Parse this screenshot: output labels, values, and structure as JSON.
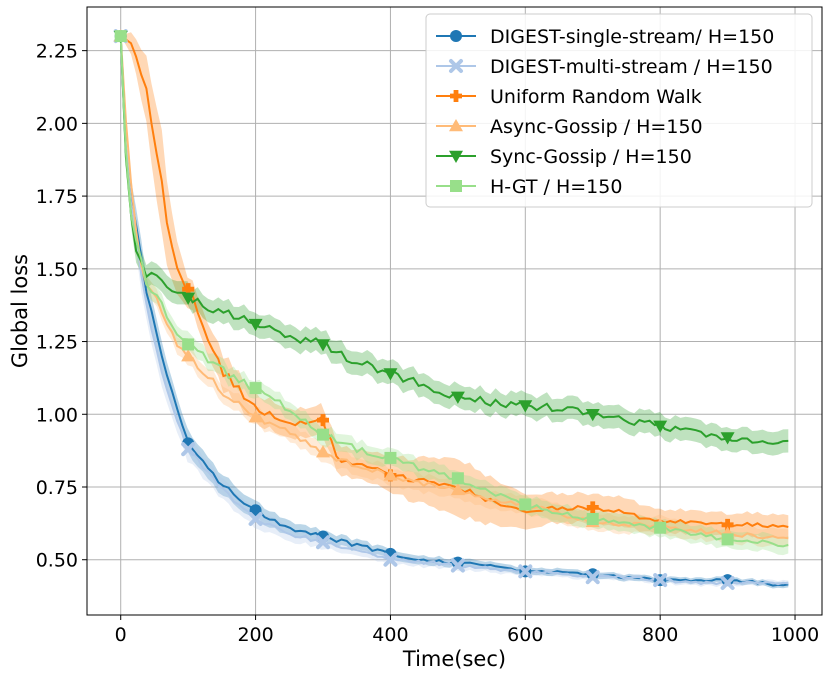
{
  "chart_data": {
    "type": "line",
    "title": "",
    "xlabel": "Time(sec)",
    "ylabel": "Global loss",
    "xlim": [
      -50,
      1040
    ],
    "ylim": [
      0.31,
      2.4
    ],
    "xticks": [
      0,
      200,
      400,
      600,
      800,
      1000
    ],
    "yticks": [
      0.5,
      0.75,
      1.0,
      1.25,
      1.5,
      1.75,
      2.0,
      2.25
    ],
    "xtick_labels": [
      "0",
      "200",
      "400",
      "600",
      "800",
      "1000"
    ],
    "ytick_labels": [
      "0.50",
      "0.75",
      "1.00",
      "1.25",
      "1.50",
      "1.75",
      "2.00",
      "2.25"
    ],
    "grid": true,
    "legend_position": "top-right",
    "series": [
      {
        "name": "DIGEST-single-stream/ H=150",
        "color": "#1f77b4",
        "marker": "circle",
        "x": [
          0,
          10,
          20,
          30,
          40,
          60,
          80,
          100,
          150,
          200,
          250,
          300,
          350,
          400,
          450,
          500,
          550,
          600,
          650,
          700,
          750,
          800,
          850,
          900,
          950,
          990
        ],
        "y": [
          2.3,
          1.8,
          1.7,
          1.55,
          1.4,
          1.2,
          1.05,
          0.9,
          0.76,
          0.67,
          0.61,
          0.58,
          0.55,
          0.52,
          0.5,
          0.49,
          0.48,
          0.46,
          0.46,
          0.45,
          0.44,
          0.43,
          0.43,
          0.43,
          0.42,
          0.41
        ],
        "band": [
          0.0,
          0.06,
          0.06,
          0.06,
          0.05,
          0.05,
          0.04,
          0.04,
          0.035,
          0.03,
          0.025,
          0.02,
          0.018,
          0.016,
          0.015,
          0.014,
          0.013,
          0.012,
          0.012,
          0.011,
          0.011,
          0.01,
          0.01,
          0.01,
          0.01,
          0.01
        ],
        "markers_x": [
          0,
          100,
          200,
          300,
          400,
          500,
          600,
          700,
          800,
          900
        ]
      },
      {
        "name": "DIGEST-multi-stream / H=150",
        "color": "#aec7e8",
        "marker": "x-filled",
        "x": [
          0,
          10,
          20,
          30,
          40,
          60,
          80,
          100,
          150,
          200,
          250,
          300,
          350,
          400,
          450,
          500,
          550,
          600,
          650,
          700,
          750,
          800,
          850,
          900,
          950,
          990
        ],
        "y": [
          2.3,
          1.78,
          1.65,
          1.5,
          1.35,
          1.15,
          1.0,
          0.88,
          0.74,
          0.64,
          0.59,
          0.56,
          0.53,
          0.5,
          0.49,
          0.48,
          0.47,
          0.46,
          0.45,
          0.44,
          0.44,
          0.43,
          0.42,
          0.42,
          0.42,
          0.42
        ],
        "band": [
          0.0,
          0.06,
          0.06,
          0.06,
          0.05,
          0.05,
          0.04,
          0.04,
          0.035,
          0.03,
          0.025,
          0.02,
          0.018,
          0.016,
          0.015,
          0.014,
          0.013,
          0.012,
          0.012,
          0.011,
          0.011,
          0.01,
          0.01,
          0.01,
          0.01,
          0.01
        ],
        "markers_x": [
          0,
          100,
          200,
          300,
          400,
          500,
          600,
          700,
          800,
          900
        ]
      },
      {
        "name": "Uniform Random Walk",
        "color": "#ff7f0e",
        "marker": "plus-filled",
        "x": [
          0,
          20,
          40,
          60,
          80,
          100,
          150,
          200,
          250,
          290,
          300,
          320,
          350,
          400,
          450,
          500,
          550,
          600,
          650,
          700,
          750,
          800,
          850,
          900,
          950,
          990
        ],
        "y": [
          2.3,
          2.25,
          2.1,
          1.8,
          1.5,
          1.43,
          1.15,
          1.02,
          0.97,
          0.97,
          0.98,
          0.85,
          0.83,
          0.79,
          0.77,
          0.75,
          0.7,
          0.66,
          0.68,
          0.68,
          0.66,
          0.63,
          0.63,
          0.62,
          0.62,
          0.62
        ],
        "band": [
          0.0,
          0.05,
          0.12,
          0.18,
          0.1,
          0.05,
          0.06,
          0.05,
          0.05,
          0.05,
          0.05,
          0.05,
          0.05,
          0.06,
          0.08,
          0.1,
          0.08,
          0.06,
          0.05,
          0.05,
          0.05,
          0.04,
          0.04,
          0.04,
          0.04,
          0.04
        ],
        "markers_x": [
          100,
          300,
          400,
          700,
          900
        ]
      },
      {
        "name": "Async-Gossip / H=150",
        "color": "#ffbb78",
        "marker": "triangle-up",
        "x": [
          0,
          10,
          20,
          30,
          40,
          60,
          80,
          100,
          150,
          200,
          250,
          300,
          350,
          400,
          450,
          500,
          550,
          600,
          650,
          700,
          750,
          800,
          850,
          900,
          950,
          990
        ],
        "y": [
          2.3,
          1.9,
          1.7,
          1.52,
          1.45,
          1.35,
          1.25,
          1.2,
          1.08,
          0.99,
          0.94,
          0.87,
          0.82,
          0.79,
          0.76,
          0.74,
          0.71,
          0.69,
          0.66,
          0.63,
          0.62,
          0.62,
          0.6,
          0.59,
          0.58,
          0.58
        ],
        "band": [
          0.0,
          0.03,
          0.03,
          0.03,
          0.03,
          0.03,
          0.03,
          0.03,
          0.03,
          0.03,
          0.03,
          0.03,
          0.03,
          0.03,
          0.03,
          0.03,
          0.03,
          0.03,
          0.03,
          0.03,
          0.03,
          0.03,
          0.03,
          0.03,
          0.03,
          0.03
        ],
        "markers_x": [
          0,
          100,
          200,
          300,
          400,
          500,
          600,
          700,
          800,
          900
        ]
      },
      {
        "name": "Sync-Gossip / H=150",
        "color": "#2ca02c",
        "marker": "triangle-down",
        "x": [
          0,
          10,
          20,
          30,
          40,
          60,
          80,
          100,
          150,
          200,
          250,
          300,
          350,
          400,
          450,
          500,
          550,
          600,
          650,
          700,
          750,
          800,
          850,
          900,
          950,
          990
        ],
        "y": [
          2.3,
          1.75,
          1.6,
          1.52,
          1.48,
          1.45,
          1.42,
          1.4,
          1.35,
          1.31,
          1.27,
          1.24,
          1.18,
          1.14,
          1.1,
          1.06,
          1.04,
          1.03,
          1.02,
          1.0,
          0.98,
          0.96,
          0.94,
          0.92,
          0.9,
          0.9
        ],
        "band": [
          0.0,
          0.04,
          0.04,
          0.04,
          0.04,
          0.04,
          0.04,
          0.04,
          0.04,
          0.04,
          0.04,
          0.04,
          0.04,
          0.04,
          0.04,
          0.04,
          0.04,
          0.04,
          0.04,
          0.04,
          0.04,
          0.04,
          0.04,
          0.04,
          0.04,
          0.04
        ],
        "markers_x": [
          0,
          100,
          200,
          300,
          400,
          500,
          600,
          700,
          800,
          900
        ]
      },
      {
        "name": "H-GT / H=150",
        "color": "#98df8a",
        "marker": "square",
        "x": [
          0,
          10,
          20,
          30,
          40,
          60,
          80,
          100,
          150,
          200,
          250,
          300,
          350,
          400,
          450,
          500,
          550,
          600,
          650,
          700,
          750,
          800,
          850,
          900,
          950,
          990
        ],
        "y": [
          2.3,
          1.75,
          1.62,
          1.52,
          1.45,
          1.38,
          1.3,
          1.24,
          1.15,
          1.09,
          1.02,
          0.93,
          0.88,
          0.85,
          0.81,
          0.78,
          0.73,
          0.69,
          0.66,
          0.64,
          0.62,
          0.61,
          0.59,
          0.57,
          0.56,
          0.55
        ],
        "band": [
          0.0,
          0.03,
          0.03,
          0.03,
          0.03,
          0.03,
          0.03,
          0.03,
          0.03,
          0.03,
          0.03,
          0.03,
          0.03,
          0.03,
          0.03,
          0.03,
          0.03,
          0.03,
          0.03,
          0.03,
          0.03,
          0.03,
          0.03,
          0.03,
          0.03,
          0.03
        ],
        "markers_x": [
          0,
          100,
          200,
          300,
          400,
          500,
          600,
          700,
          800,
          900
        ]
      }
    ]
  }
}
